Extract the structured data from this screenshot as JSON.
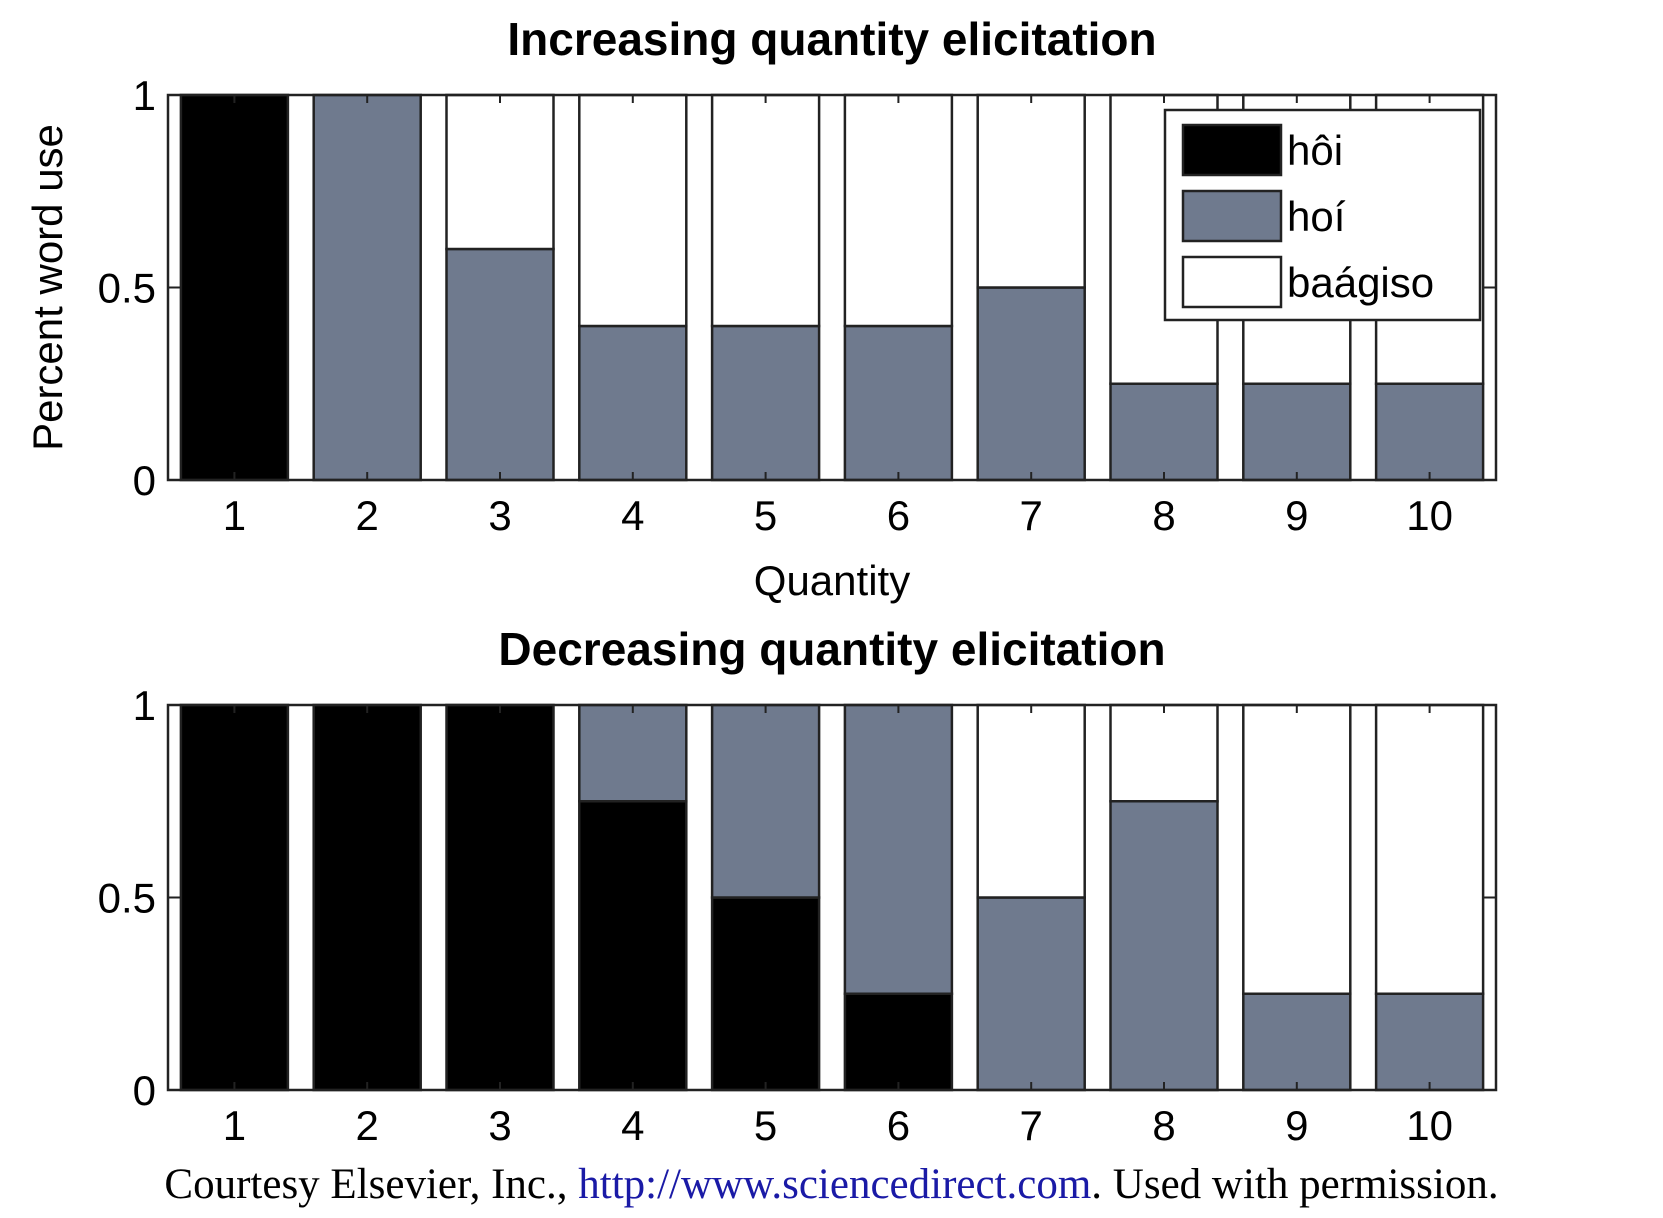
{
  "chart_data": [
    {
      "type": "bar",
      "stacked": true,
      "title": "Increasing quantity elicitation",
      "xlabel": "Quantity",
      "ylabel": "Percent word use",
      "ylim": [
        0,
        1
      ],
      "yticks": [
        "0",
        "0.5",
        "1"
      ],
      "categories": [
        "1",
        "2",
        "3",
        "4",
        "5",
        "6",
        "7",
        "8",
        "9",
        "10"
      ],
      "series": [
        {
          "name": "hôi",
          "color": "#000000",
          "values": [
            1,
            0,
            0,
            0,
            0,
            0,
            0,
            0,
            0,
            0
          ]
        },
        {
          "name": "hoí",
          "color": "#6f7a8e",
          "values": [
            0,
            1,
            0.6,
            0.4,
            0.4,
            0.4,
            0.5,
            0.25,
            0.25,
            0.25
          ]
        },
        {
          "name": "baágiso",
          "color": "#ffffff",
          "values": [
            0,
            0,
            0.4,
            0.6,
            0.6,
            0.6,
            0.5,
            0.75,
            0.75,
            0.75
          ]
        }
      ],
      "legend": "top-right",
      "grid": false
    },
    {
      "type": "bar",
      "stacked": true,
      "title": "Decreasing quantity elicitation",
      "xlabel": "",
      "ylabel": "",
      "ylim": [
        0,
        1
      ],
      "yticks": [
        "0",
        "0.5",
        "1"
      ],
      "categories": [
        "1",
        "2",
        "3",
        "4",
        "5",
        "6",
        "7",
        "8",
        "9",
        "10"
      ],
      "series": [
        {
          "name": "hôi",
          "color": "#000000",
          "values": [
            1,
            1,
            1,
            0.75,
            0.5,
            0.25,
            0,
            0,
            0,
            0
          ]
        },
        {
          "name": "hoí",
          "color": "#6f7a8e",
          "values": [
            0,
            0,
            0,
            0.25,
            0.5,
            0.75,
            0.5,
            0.75,
            0.25,
            0.25
          ]
        },
        {
          "name": "baágiso",
          "color": "#ffffff",
          "values": [
            0,
            0,
            0,
            0,
            0,
            0,
            0.5,
            0.25,
            0.75,
            0.75
          ]
        }
      ],
      "legend": "none",
      "grid": false
    }
  ],
  "caption": {
    "prefix": "Courtesy Elsevier, Inc., ",
    "link": "http://www.sciencedirect.com",
    "suffix": ". Used with permission."
  }
}
